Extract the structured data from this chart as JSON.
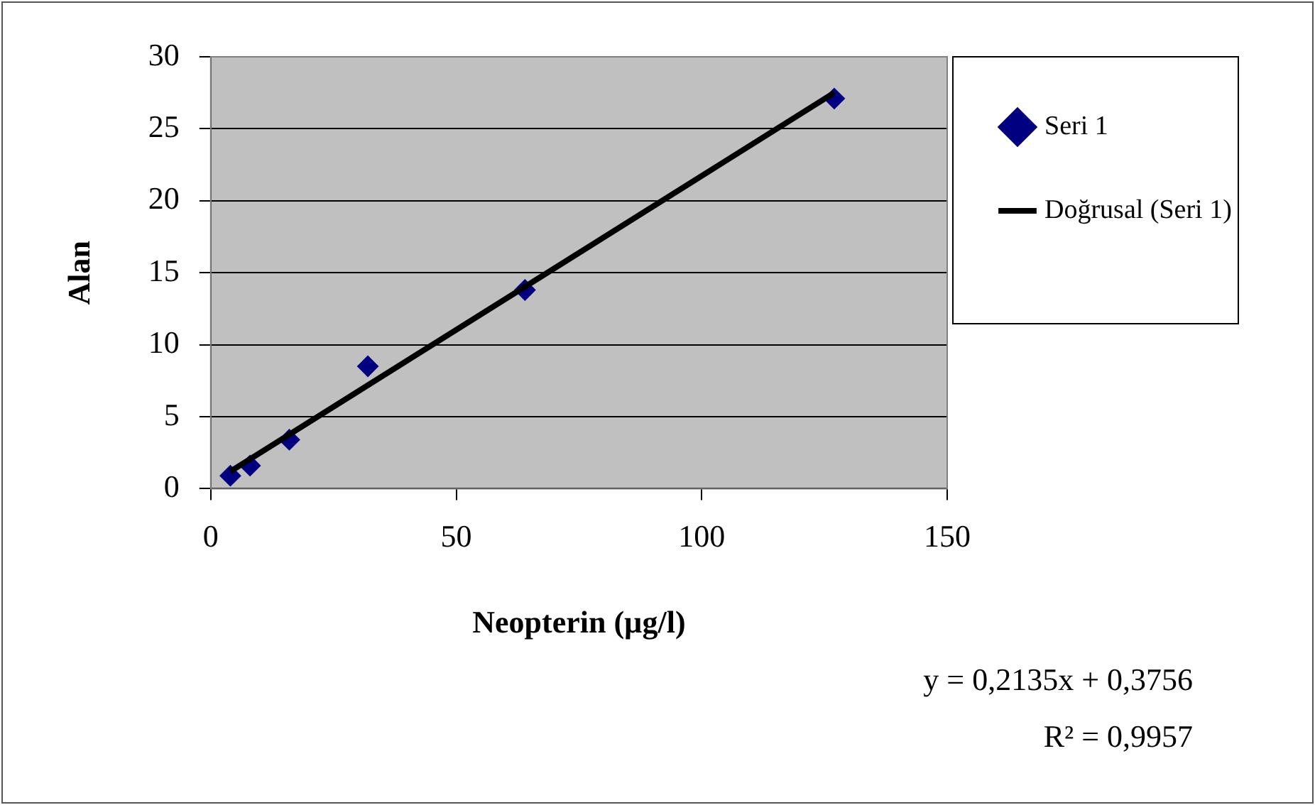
{
  "chart_data": {
    "type": "scatter",
    "xlabel": "Neopterin (µg/l)",
    "ylabel": "Alan",
    "series": [
      {
        "name": "Seri 1",
        "type": "scatter",
        "color": "#000080",
        "marker": "diamond",
        "x": [
          4,
          8,
          16,
          32,
          64,
          127
        ],
        "values": [
          0.9,
          1.6,
          3.4,
          8.5,
          13.8,
          27.1
        ]
      },
      {
        "name": "Doğrusal (Seri 1)",
        "type": "line",
        "color": "#000000",
        "marker": "none",
        "line_style": "solid",
        "x": [
          4,
          127
        ],
        "values": [
          1.2,
          27.5
        ]
      }
    ],
    "xlim": [
      0,
      150
    ],
    "xticks": [
      0,
      50,
      100,
      150
    ],
    "ylim": [
      0,
      30
    ],
    "yticks": [
      0,
      5,
      10,
      15,
      20,
      25,
      30
    ],
    "grid": "y",
    "legend": "right",
    "annotations": [
      "y = 0,2135x + 0,3756",
      "R² = 0,9957"
    ]
  }
}
